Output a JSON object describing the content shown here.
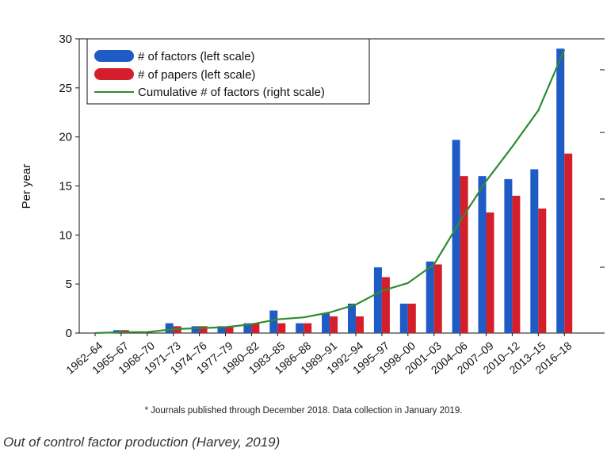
{
  "chart_data": {
    "type": "bar",
    "ylabel": "Per year",
    "ylim": [
      0,
      30
    ],
    "yticks": [
      0,
      5,
      10,
      15,
      20,
      25,
      30
    ],
    "categories": [
      "1962–64",
      "1965–67",
      "1968–70",
      "1971–73",
      "1974–76",
      "1977–79",
      "1980–82",
      "1983–85",
      "1986–88",
      "1989–91",
      "1992–94",
      "1995–97",
      "1998–00",
      "2001–03",
      "2004–06",
      "2007–09",
      "2010–12",
      "2013–15",
      "2016–18"
    ],
    "series": [
      {
        "name": "# of factors (left scale)",
        "kind": "bar",
        "color": "#1f5bc4",
        "values": [
          0,
          0.3,
          0,
          1.0,
          0.7,
          0.7,
          1.0,
          2.3,
          1.0,
          2.0,
          3.0,
          6.7,
          3.0,
          7.3,
          19.7,
          16.0,
          15.7,
          16.7,
          29.0
        ]
      },
      {
        "name": "# of papers (left scale)",
        "kind": "bar",
        "color": "#d21f2b",
        "values": [
          0,
          0.3,
          0,
          0.7,
          0.7,
          0.7,
          1.0,
          1.0,
          1.0,
          1.7,
          1.7,
          5.7,
          3.0,
          7.0,
          16.0,
          12.3,
          14.0,
          12.7,
          18.3
        ]
      },
      {
        "name": "Cumulative # of factors (right scale)",
        "kind": "line",
        "color": "#2e8b2e",
        "values": [
          0,
          0.1,
          0.1,
          0.4,
          0.5,
          0.6,
          0.9,
          1.4,
          1.6,
          2.1,
          2.9,
          4.3,
          5.1,
          7.0,
          11.4,
          15.5,
          19.0,
          22.7,
          28.9
        ]
      }
    ],
    "legend_position": "top-left",
    "grid": false
  },
  "footnote": "* Journals published through December 2018. Data collection in January 2019.",
  "caption": "Out of control factor production (Harvey, 2019)"
}
